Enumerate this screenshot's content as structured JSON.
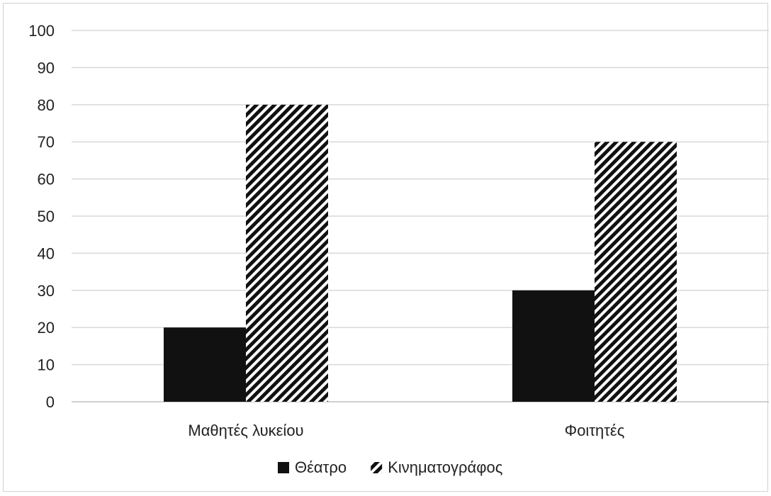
{
  "chart_data": {
    "type": "bar",
    "categories": [
      "Μαθητές λυκείου",
      "Φοιτητές"
    ],
    "series": [
      {
        "name": "Θέατρο",
        "values": [
          20,
          30
        ],
        "color": "#111111",
        "pattern": "solid"
      },
      {
        "name": "Κινηματογράφος",
        "values": [
          80,
          70
        ],
        "color": "#111111",
        "pattern": "diagonal-hatch"
      }
    ],
    "title": "",
    "xlabel": "",
    "ylabel": "",
    "ylim": [
      0,
      100
    ],
    "yticks": [
      "0",
      "10",
      "20",
      "30",
      "40",
      "50",
      "60",
      "70",
      "80",
      "90",
      "100"
    ],
    "grid": true,
    "legend_position": "bottom",
    "gridline_color": "#d9d9d9",
    "axis_color": "#bfbfbf"
  }
}
